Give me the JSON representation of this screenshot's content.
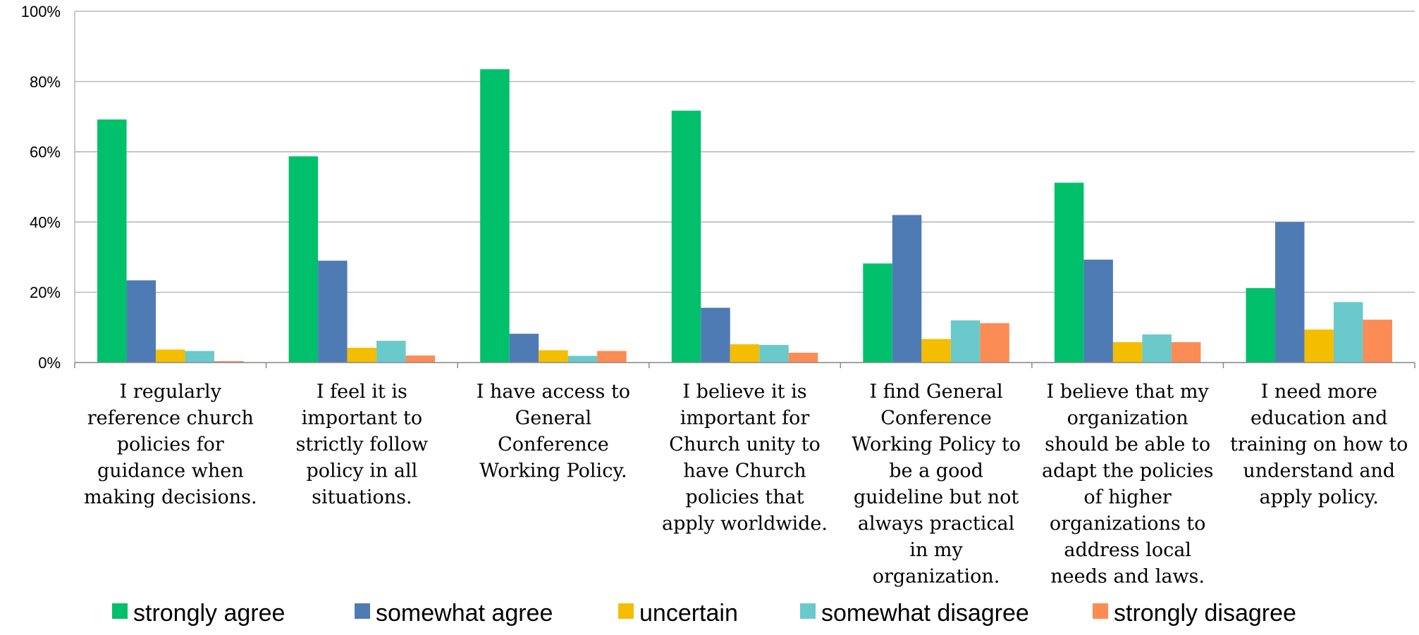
{
  "chart_data": {
    "type": "bar",
    "categories": [
      [
        "I regularly",
        "reference church",
        "policies for",
        "guidance when",
        "making decisions."
      ],
      [
        "I feel it is",
        "important to",
        "strictly follow",
        "policy in all",
        "situations."
      ],
      [
        "I have access to",
        "General",
        "Conference",
        "Working Policy."
      ],
      [
        "I believe it is",
        "important for",
        "Church unity to",
        "have Church",
        "policies that",
        "apply worldwide."
      ],
      [
        "I find General",
        "Conference",
        "Working Policy to",
        "be a good",
        "guideline but not",
        "always practical",
        "in my",
        "organization."
      ],
      [
        "I believe that my",
        "organization",
        "should be able to",
        "adapt the policies",
        "of higher",
        "organizations to",
        "address local",
        "needs and laws."
      ],
      [
        "I need more",
        "education and",
        "training on how to",
        "understand and",
        "apply policy."
      ]
    ],
    "series": [
      {
        "name": "strongly agree",
        "color": "#00c06b",
        "values": [
          69.2,
          58.7,
          83.5,
          71.7,
          28.2,
          51.2,
          21.2
        ]
      },
      {
        "name": "somewhat agree",
        "color": "#4f7bb5",
        "values": [
          23.4,
          29.0,
          8.2,
          15.6,
          42.0,
          29.3,
          40.0
        ]
      },
      {
        "name": "uncertain",
        "color": "#f5bd00",
        "values": [
          3.7,
          4.2,
          3.5,
          5.2,
          6.7,
          5.8,
          9.4
        ]
      },
      {
        "name": "somewhat disagree",
        "color": "#6ac9cb",
        "values": [
          3.3,
          6.2,
          1.9,
          5.0,
          12.0,
          8.0,
          17.2
        ]
      },
      {
        "name": "strongly disagree",
        "color": "#fb8c55",
        "values": [
          0.4,
          2.0,
          3.3,
          2.8,
          11.2,
          5.8,
          12.2
        ]
      }
    ],
    "yticks": [
      "0%",
      "20%",
      "40%",
      "60%",
      "80%",
      "100%"
    ],
    "ylim": [
      0,
      100
    ],
    "grid": true,
    "legend_position": "bottom"
  }
}
